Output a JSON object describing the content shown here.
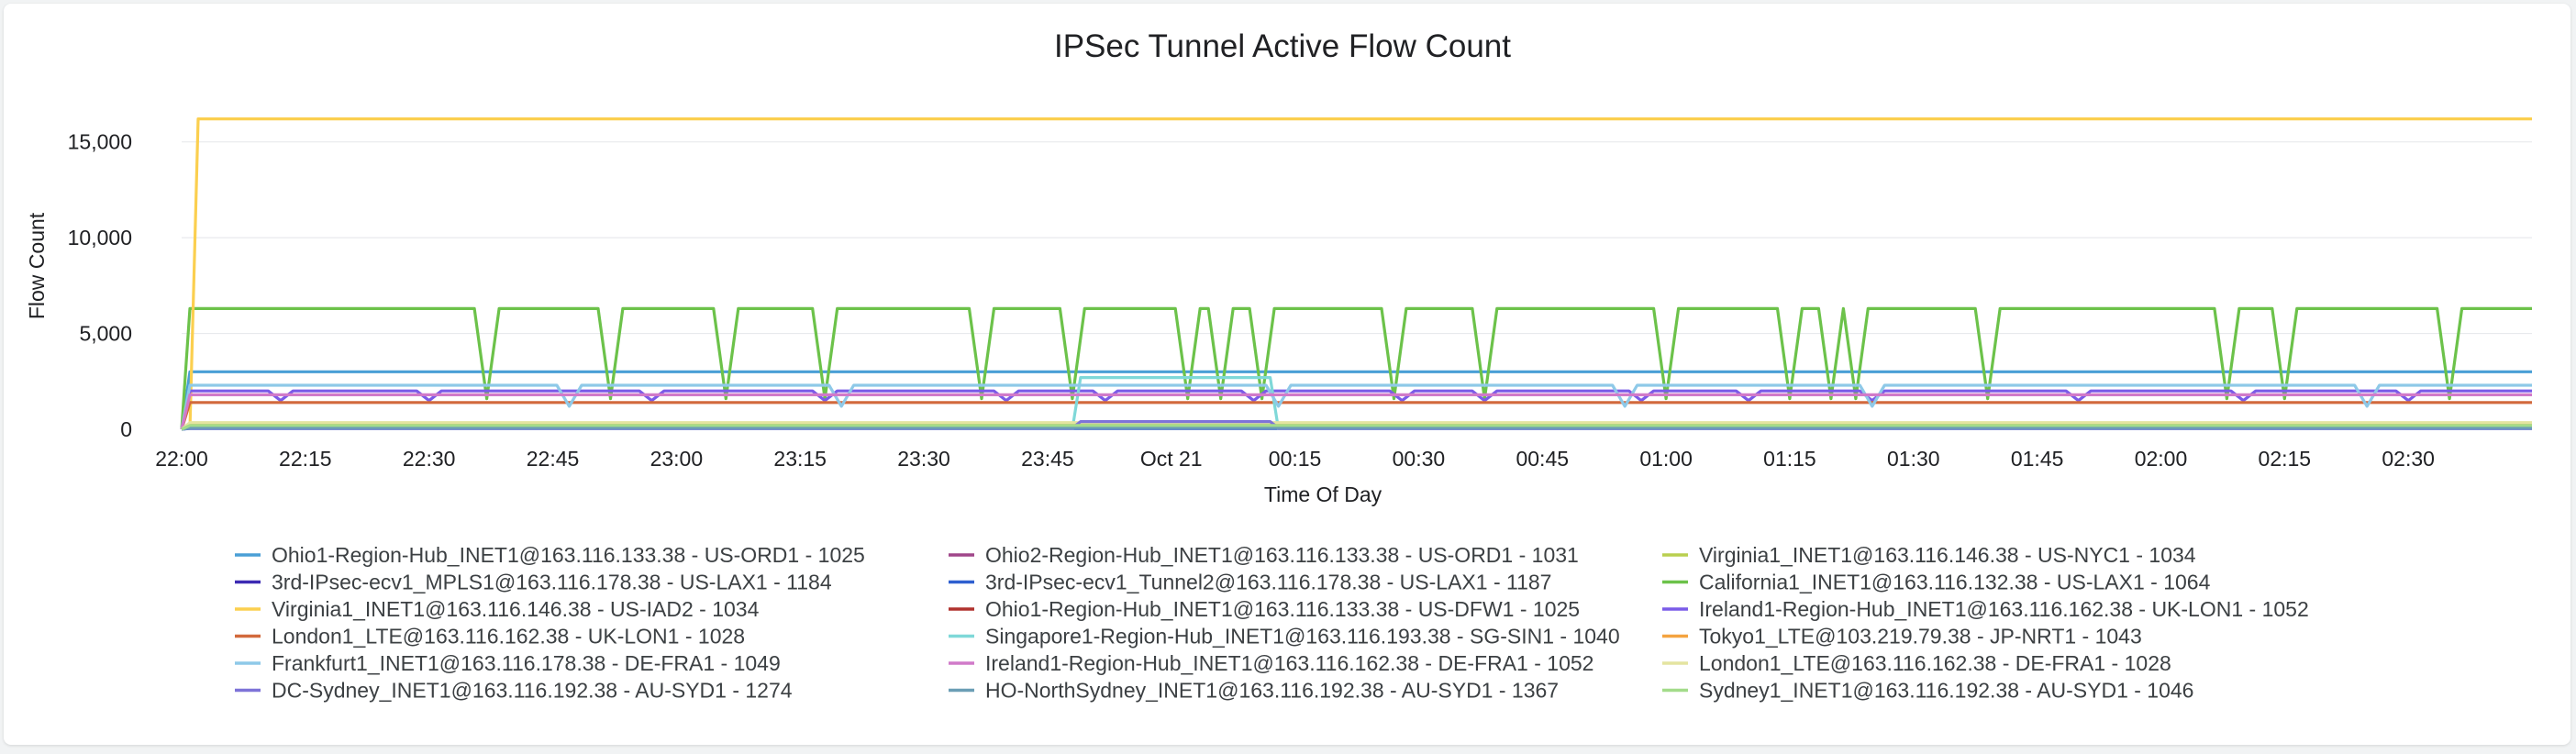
{
  "chart_data": {
    "type": "line",
    "title": "IPSec Tunnel Active Flow Count",
    "xlabel": "Time Of Day",
    "ylabel": "Flow Count",
    "ylim": [
      0,
      18000
    ],
    "yticks": [
      0,
      5000,
      10000,
      15000
    ],
    "ytick_labels": [
      "0",
      "5,000",
      "10,000",
      "15,000"
    ],
    "xlim": [
      "22:00",
      "02:45"
    ],
    "xticks": [
      "22:00",
      "22:15",
      "22:30",
      "22:45",
      "23:00",
      "23:15",
      "23:30",
      "23:45",
      "Oct 21",
      "00:15",
      "00:30",
      "00:45",
      "01:00",
      "01:15",
      "01:30",
      "01:45",
      "02:00",
      "02:15",
      "02:30"
    ],
    "grid": true,
    "legend_position": "bottom",
    "series": [
      {
        "name": "Ohio1-Region-Hub_INET1@163.116.133.38 - US-ORD1 - 1025",
        "color": "#4a9fd6",
        "base": 3000
      },
      {
        "name": "Ohio2-Region-Hub_INET1@163.116.133.38 - US-ORD1 - 1031",
        "color": "#a0468a",
        "base": 150
      },
      {
        "name": "Virginia1_INET1@163.116.146.38 - US-NYC1 - 1034",
        "color": "#b9cf4f",
        "base": 200
      },
      {
        "name": "3rd-IPsec-ecv1_MPLS1@163.116.178.38 - US-LAX1 - 1184",
        "color": "#3d2bb3",
        "base": 100
      },
      {
        "name": "3rd-IPsec-ecv1_Tunnel2@163.116.178.38 - US-LAX1 - 1187",
        "color": "#2e5fcf",
        "base": 50
      },
      {
        "name": "California1_INET1@163.116.132.38 - US-LAX1 - 1064",
        "color": "#6cc24a",
        "base": 6300,
        "dips": [
          "22:37",
          "22:52",
          "23:06",
          "23:18",
          "23:37",
          "23:48",
          "00:02",
          "00:06",
          "00:11",
          "00:27",
          "00:38",
          "01:00",
          "01:15",
          "01:20",
          "01:23",
          "01:39",
          "02:08",
          "02:15",
          "02:35"
        ],
        "dip_value": 1600
      },
      {
        "name": "Virginia1_INET1@163.116.146.38 - US-IAD2 - 1034",
        "color": "#fbcf4f",
        "base": 16200,
        "start": "22:02"
      },
      {
        "name": "Ohio1-Region-Hub_INET1@163.116.133.38 - US-DFW1 - 1025",
        "color": "#b0322e",
        "base": 250
      },
      {
        "name": "Ireland1-Region-Hub_INET1@163.116.162.38 - UK-LON1 - 1052",
        "color": "#7a5be8",
        "base": 2000,
        "dips": [
          "22:12",
          "22:30",
          "22:57",
          "23:18",
          "23:40",
          "23:52",
          "00:10",
          "00:28",
          "00:38",
          "00:57",
          "01:10",
          "01:25",
          "01:50",
          "02:10",
          "02:30"
        ],
        "dip_value": 1500
      },
      {
        "name": "London1_LTE@163.116.162.38 - UK-LON1 - 1028",
        "color": "#d2693c",
        "base": 1400
      },
      {
        "name": "Singapore1-Region-Hub_INET1@163.116.193.38 - SG-SIN1 - 1040",
        "color": "#7fd8d8",
        "base": 2700,
        "start": "23:49",
        "end": "00:12"
      },
      {
        "name": "Tokyo1_LTE@103.219.79.38 - JP-NRT1 - 1043",
        "color": "#f4a340",
        "base": 300
      },
      {
        "name": "Frankfurt1_INET1@163.116.178.38 - DE-FRA1 - 1049",
        "color": "#8ec9e8",
        "base": 2300,
        "dips": [
          "22:47",
          "23:20",
          "00:13",
          "00:55",
          "01:25",
          "02:25"
        ],
        "dip_value": 1200
      },
      {
        "name": "Ireland1-Region-Hub_INET1@163.116.162.38 - DE-FRA1 - 1052",
        "color": "#d17ac9",
        "base": 1800
      },
      {
        "name": "London1_LTE@163.116.162.38 - DE-FRA1 - 1028",
        "color": "#e4e4a0",
        "base": 350
      },
      {
        "name": "DC-Sydney_INET1@163.116.192.38 - AU-SYD1 - 1274",
        "color": "#7e73d8",
        "base": 60,
        "bump_start": "23:48",
        "bump_end": "00:13",
        "bump_value": 400
      },
      {
        "name": "HO-NorthSydney_INET1@163.116.192.38 - AU-SYD1 - 1367",
        "color": "#6b9eb5",
        "base": 80
      },
      {
        "name": "Sydney1_INET1@163.116.192.38 - AU-SYD1 - 1046",
        "color": "#a3dc8a",
        "base": 200
      }
    ]
  }
}
